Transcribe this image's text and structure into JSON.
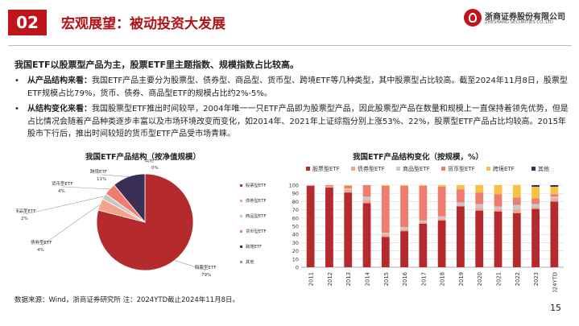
{
  "header": {
    "number": "02",
    "title": "宏观展望：被动投资大发展",
    "logo_cn": "浙商证券股份有限公司",
    "logo_en": "ZHESHANG SECURITIES CO.,LTD"
  },
  "lead": "我国ETF以股票型产品为主，股票ETF里主题指数、规模指数占比较高。",
  "bullets": [
    {
      "dot": "•",
      "label": "从产品结构来看：",
      "text": "我国ETF产品主要分为股票型、债券型、商品型、货币型、跨境ETF等几种类型，其中股票型占比较高。截至2024年11月8日，股票型ETF规模占比79%，货币、债券、商品型ETF的规模占比约2%-5%。"
    },
    {
      "dot": "•",
      "label": "从结构变化来看：",
      "text": "我国股票型ETF推出时间较早，2004年唯一一只ETF产品即为股票型产品，因此股票型产品在数量和规模上一直保持着领先优势，但是占比情况会随着产品种类逐步丰富以及市场环境改变而变化，如2014年、2021年上证综指分别上涨53%、22%，股票型ETF产品占比均较高。2015年股市下行后，推出时间较短的货币型ETF产品受市场青睐。"
    }
  ],
  "colors": {
    "stock": "#b52a2d",
    "bond": "#f2a48e",
    "commodity": "#c8c8c8",
    "money": "#ef7d6f",
    "crossborder": "#f5c242",
    "other": "#3c2f55"
  },
  "chart_data": [
    {
      "type": "pie",
      "title": "我国ETF产品结构（按净值规模）",
      "slices": [
        {
          "name": "股票型ETF",
          "label": "股票型ETF",
          "pct_label": "79%",
          "value": 79,
          "color": "#b52a2d"
        },
        {
          "name": "债券型ETF",
          "label": "债券型ETF",
          "pct_label": "4%",
          "value": 4,
          "color": "#f2a48e"
        },
        {
          "name": "商品型ETF",
          "label": "商品型ETF",
          "pct_label": "2%",
          "value": 2,
          "color": "#c8c8c8"
        },
        {
          "name": "货币型ETF",
          "label": "货币型ETF",
          "pct_label": "4%",
          "value": 4,
          "color": "#ef7d6f"
        },
        {
          "name": "跨境ETF",
          "label": "跨境ETF",
          "pct_label": "11%",
          "value": 11,
          "color": "#3c2f55"
        },
        {
          "name": "其他",
          "label": "其他",
          "pct_label": "0%",
          "value": 0,
          "color": "#999999"
        }
      ],
      "legend": {
        "position": "right",
        "items": [
          {
            "name": "股票型ETF",
            "color": "#b52a2d"
          },
          {
            "name": "债券型ETF",
            "color": "#f2a48e"
          },
          {
            "name": "商品型ETF",
            "color": "#c8c8c8"
          },
          {
            "name": "货币型ETF",
            "color": "#ef7d6f"
          },
          {
            "name": "跨境ETF",
            "color": "#3c2f55"
          },
          {
            "name": "其他",
            "color": "#999999"
          }
        ]
      }
    },
    {
      "type": "bar",
      "stacked": true,
      "title": "我国ETF产品结构变化（按规模，%）",
      "categories": [
        "2011",
        "2012",
        "2013",
        "2014",
        "2015",
        "2016",
        "2017",
        "2018",
        "2019",
        "2020",
        "2021",
        "2022",
        "2023",
        "2024YTD"
      ],
      "ylim": [
        0,
        100
      ],
      "yticks": [
        0,
        10,
        20,
        30,
        40,
        50,
        60,
        70,
        80,
        90,
        100
      ],
      "grid": true,
      "legend_position": "top",
      "series": [
        {
          "name": "股票型ETF",
          "color": "#b52a2d",
          "values": [
            99,
            97,
            91,
            78,
            37,
            44,
            53,
            57,
            74,
            69,
            68,
            66,
            71,
            80
          ]
        },
        {
          "name": "债券型ETF",
          "color": "#f2a48e",
          "values": [
            1,
            2,
            3,
            4,
            3,
            2,
            2,
            2,
            1,
            3,
            3,
            4,
            2,
            4
          ]
        },
        {
          "name": "商品型ETF",
          "color": "#c8c8c8",
          "values": [
            0,
            0,
            2,
            4,
            2,
            3,
            2,
            3,
            4,
            5,
            3,
            6,
            4,
            2
          ]
        },
        {
          "name": "货币型ETF",
          "color": "#ef7d6f",
          "values": [
            0,
            1,
            3,
            14,
            57,
            50,
            42,
            36,
            16,
            14,
            15,
            9,
            7,
            3
          ]
        },
        {
          "name": "跨境ETF",
          "color": "#f5c242",
          "values": [
            0,
            0,
            1,
            0,
            1,
            1,
            1,
            2,
            5,
            9,
            11,
            15,
            14,
            9
          ]
        },
        {
          "name": "其他",
          "color": "#3c2f55",
          "values": [
            0,
            0,
            0,
            0,
            0,
            0,
            0,
            0,
            0,
            0,
            0,
            0,
            2,
            2
          ]
        }
      ]
    }
  ],
  "footer": {
    "source": "数据来源：Wind，浙商证券研究所 注：2024YTD截止2024年11月8日。",
    "page": "15"
  }
}
